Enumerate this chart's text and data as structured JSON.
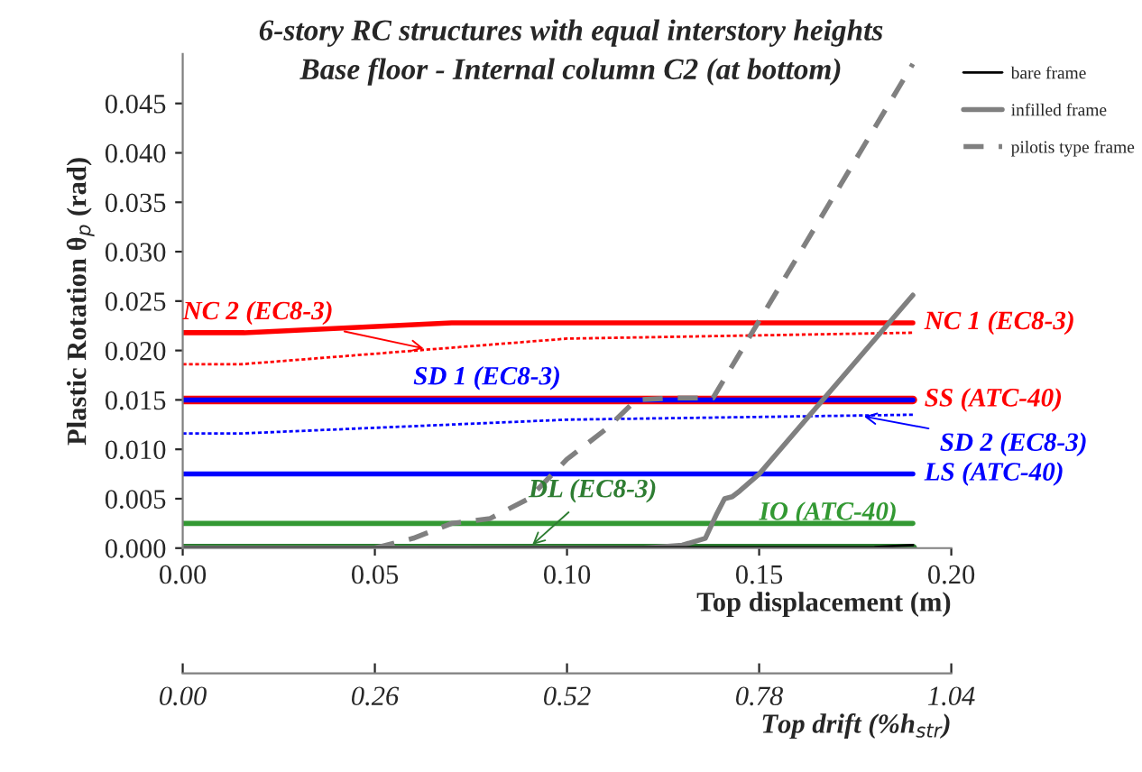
{
  "chart_data": {
    "type": "line",
    "title": "6-story RC structures with equal interstory heights",
    "subtitle": "Base floor - Internal column C2 (at bottom)",
    "xlabel": "Top displacement (m)",
    "ylabel": "Plastic Rotation θ$_{p}$ (rad)",
    "x2label": "Top drift (%h$_{str}$)",
    "xlim": [
      0,
      0.2
    ],
    "xticks": [
      {
        "value": 0,
        "label": "0.00"
      },
      {
        "value": 0.05,
        "label": "0.05"
      },
      {
        "value": 0.1,
        "label": "0.10"
      },
      {
        "value": 0.15,
        "label": "0.15"
      },
      {
        "value": 0.2,
        "label": "0.20"
      }
    ],
    "x2lim": [
      0,
      1.04
    ],
    "x2ticks": [
      {
        "value": 0,
        "label": "0.00"
      },
      0.26,
      0.52,
      0.78,
      1.04
    ],
    "ylim": [
      0,
      0.05
    ],
    "yticks": [
      {
        "value": 0,
        "label": "0.000"
      },
      0.005,
      {
        "value": 0.01,
        "label": "0.010"
      },
      0.015,
      {
        "value": 0.02,
        "label": "0.020"
      },
      0.025,
      {
        "value": 0.03,
        "label": "0.030"
      },
      0.035,
      {
        "value": 0.04,
        "label": "0.040"
      },
      0.045
    ],
    "grid": false,
    "legend": "top right",
    "series": [
      {
        "name": "NC 1 (EC8-3)",
        "color": "#ff0000",
        "x": [
          0,
          0.016,
          0.07,
          0.19
        ],
        "values": [
          0.0218,
          0.0218,
          0.0228,
          0.0228
        ]
      },
      {
        "name": "NC 2 (EC8-3)",
        "color": "#ff0000",
        "line_style": "dotted",
        "x": [
          0,
          0.015,
          0.1,
          0.19
        ],
        "values": [
          0.0186,
          0.0186,
          0.0212,
          0.0218
        ]
      },
      {
        "name": "SS (ATC-40)",
        "color": "#ff0000",
        "x": [
          0,
          0.19
        ],
        "values": [
          0.015,
          0.015
        ]
      },
      {
        "name": "SD 1 (EC8-3)",
        "color": "#0000ff",
        "x": [
          0,
          0.19
        ],
        "values": [
          0.015,
          0.015
        ]
      },
      {
        "name": "SD 2 (EC8-3)",
        "color": "#0000ff",
        "line_style": "dotted",
        "x": [
          0,
          0.015,
          0.1,
          0.19
        ],
        "values": [
          0.0116,
          0.0116,
          0.013,
          0.0135
        ]
      },
      {
        "name": "LS (ATC-40)",
        "color": "#0000ff",
        "x": [
          0,
          0.19
        ],
        "values": [
          0.0075,
          0.0075
        ]
      },
      {
        "name": "IO (ATC-40)",
        "color": "#339933",
        "x": [
          0,
          0.19
        ],
        "values": [
          0.0025,
          0.0025
        ]
      },
      {
        "name": "DL (EC8-3)",
        "color": "#2e7d32",
        "x": [
          0,
          0.19
        ],
        "values": [
          0,
          0
        ]
      },
      {
        "name": "bare frame",
        "color": "#000000",
        "x": [
          0,
          0.18,
          0.19
        ],
        "values": [
          0,
          0.0001,
          0.0003
        ]
      },
      {
        "name": "infilled frame",
        "color": "#808080",
        "x": [
          0,
          0.12,
          0.13,
          0.136,
          0.139,
          0.141,
          0.143,
          0.145,
          0.15,
          0.19
        ],
        "values": [
          0,
          0,
          0.0003,
          0.001,
          0.0035,
          0.005,
          0.0052,
          0.0058,
          0.0075,
          0.0256
        ]
      },
      {
        "name": "pilotis type frame",
        "color": "#808080",
        "line_style": "dashed",
        "x": [
          0.05,
          0.06,
          0.07,
          0.08,
          0.09,
          0.1,
          0.11,
          0.118,
          0.128,
          0.138,
          0.19
        ],
        "values": [
          0,
          0.001,
          0.0025,
          0.003,
          0.005,
          0.009,
          0.012,
          0.015,
          0.0152,
          0.0152,
          0.049
        ]
      }
    ]
  }
}
